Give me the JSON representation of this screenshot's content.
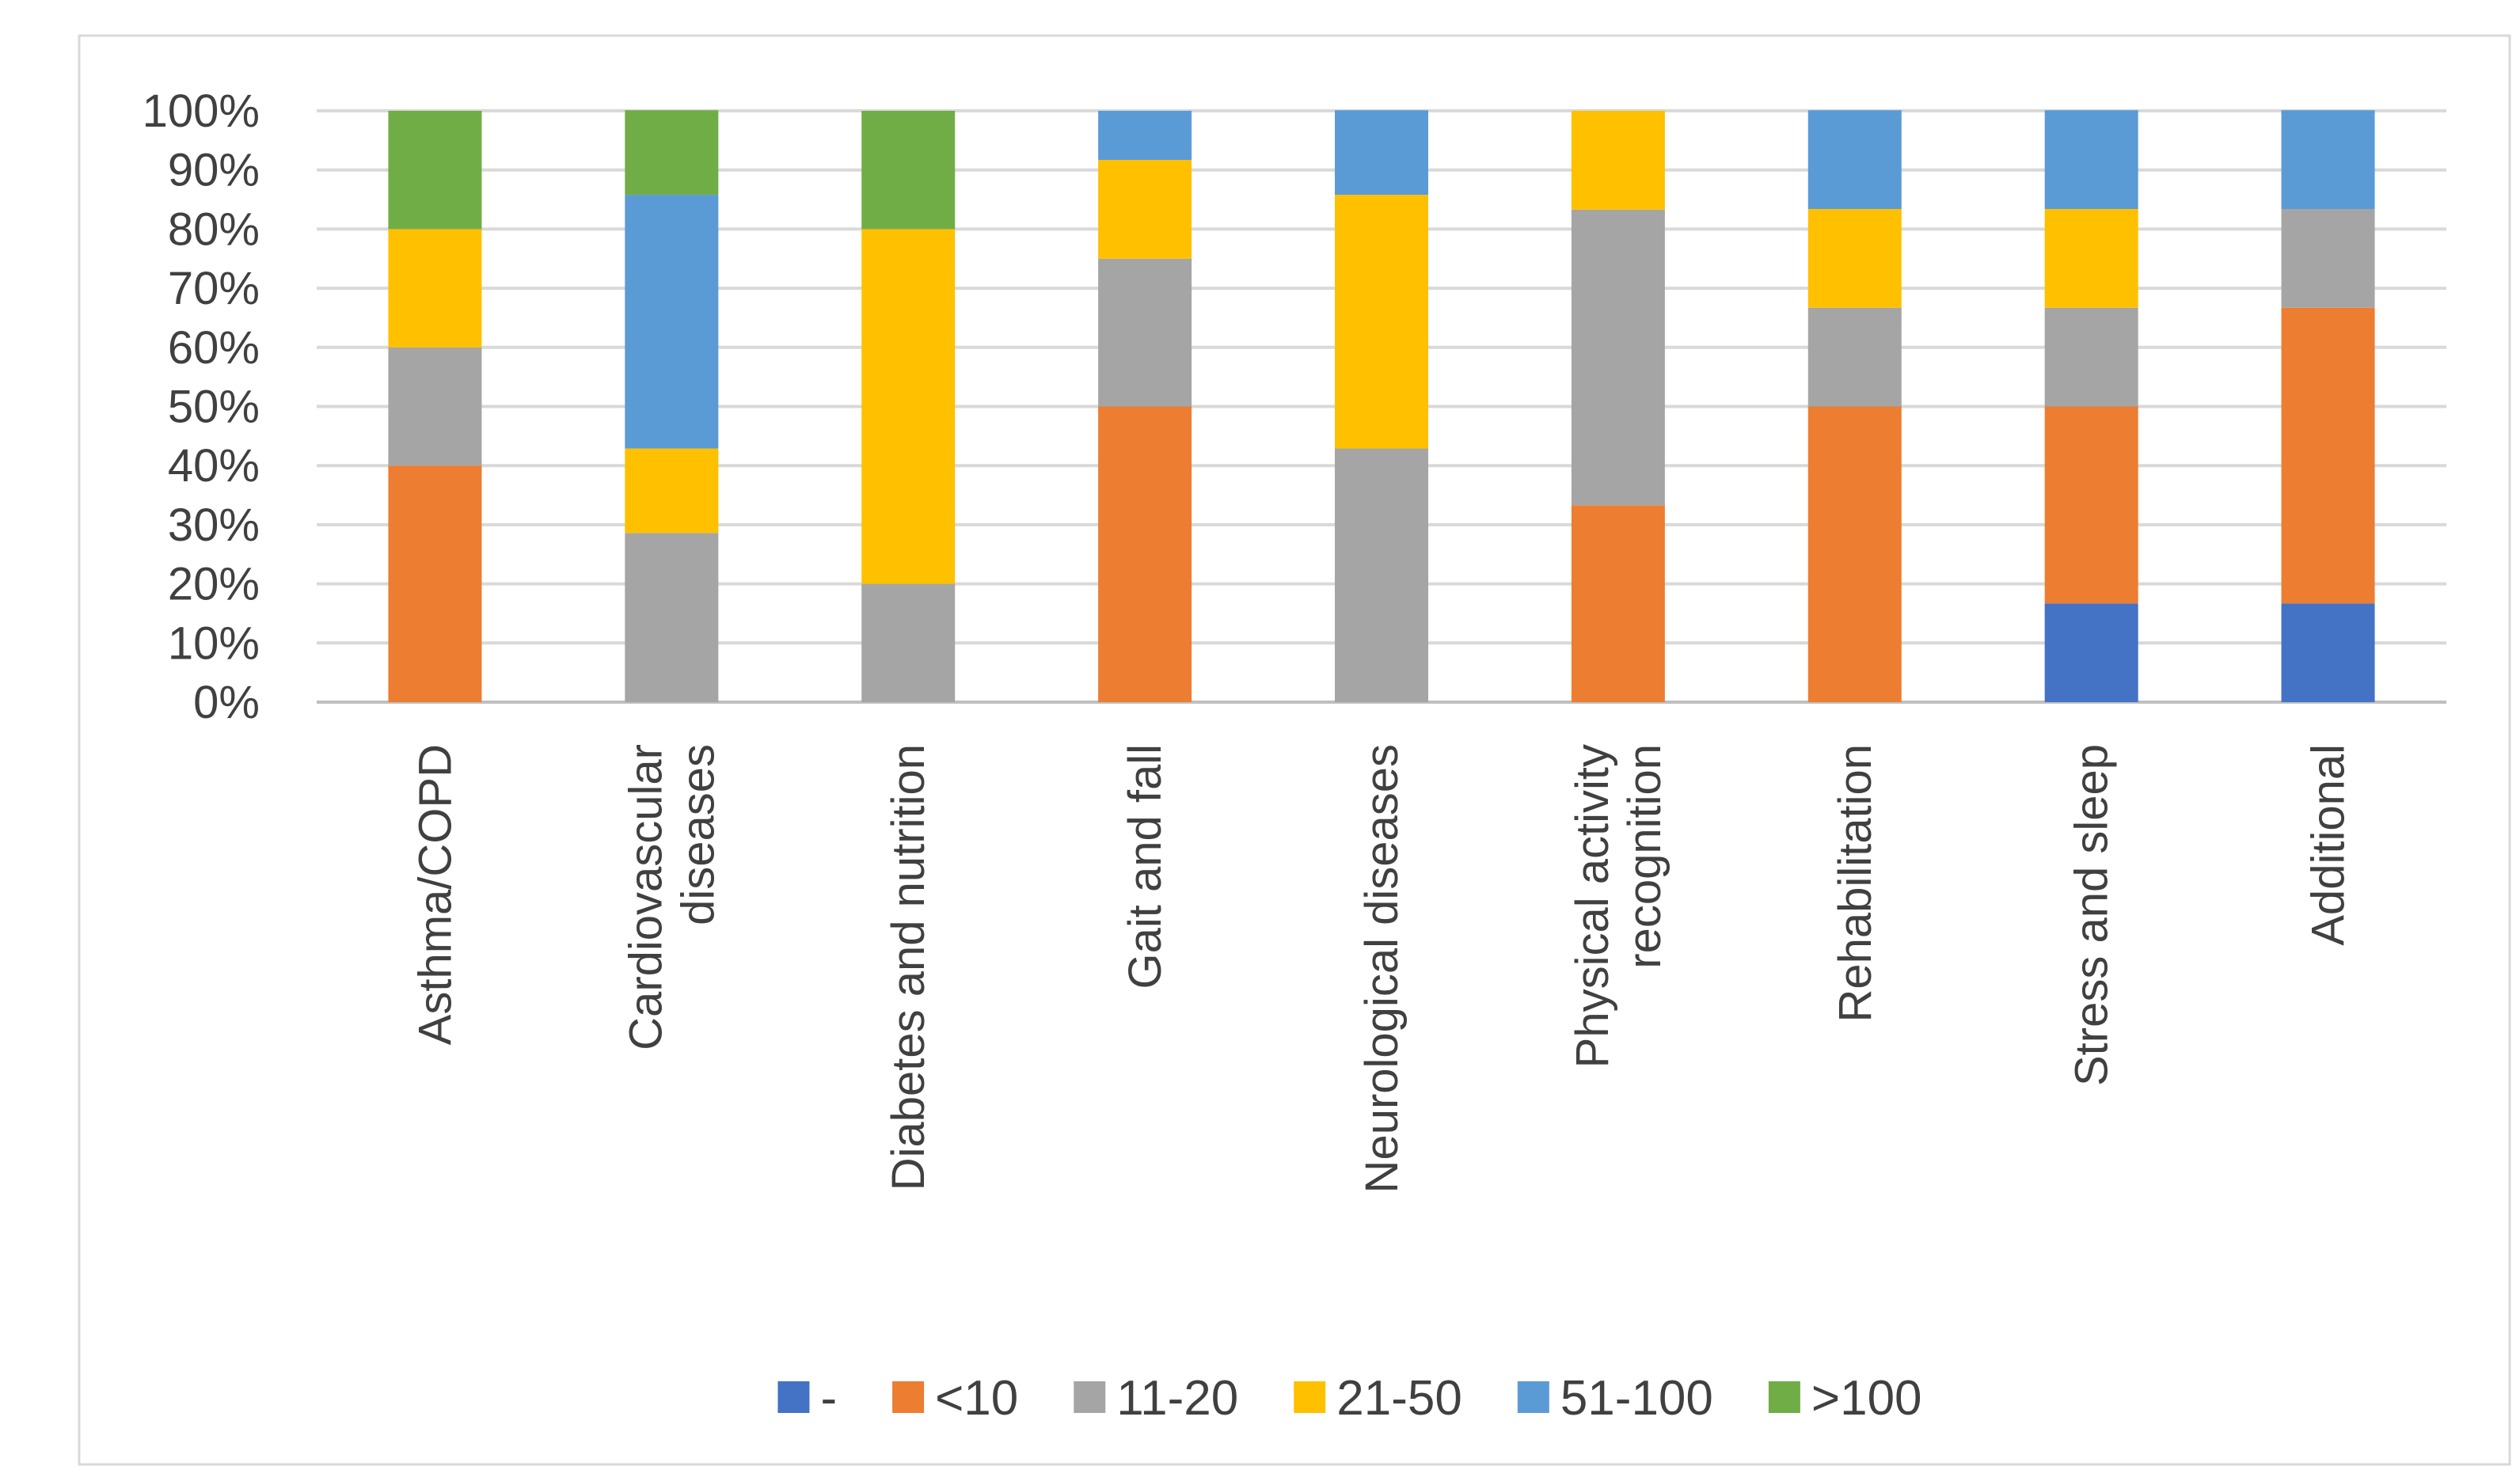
{
  "chart_data": {
    "type": "bar",
    "stacked": "percent",
    "title": "",
    "xlabel": "",
    "ylabel": "",
    "ylim": [
      0,
      100
    ],
    "y_ticks": [
      "0%",
      "10%",
      "20%",
      "30%",
      "40%",
      "50%",
      "60%",
      "70%",
      "80%",
      "90%",
      "100%"
    ],
    "categories": [
      [
        "Asthma/COPD"
      ],
      [
        "Cardiovascular",
        "diseases"
      ],
      [
        "Diabetes and nutrition"
      ],
      [
        "Gait and fall"
      ],
      [
        "Neurological diseases"
      ],
      [
        "Physical activity",
        "recognition"
      ],
      [
        "Rehabilitation"
      ],
      [
        "Stress and sleep"
      ],
      [
        "Additional"
      ]
    ],
    "series": [
      {
        "name": "-",
        "color": "#4472c4",
        "values": [
          0,
          0,
          0,
          0,
          0,
          0,
          0,
          16.7,
          16.7
        ]
      },
      {
        "name": "<10",
        "color": "#ed7d31",
        "values": [
          40,
          0,
          0,
          50,
          0,
          33.3,
          50,
          33.3,
          50
        ]
      },
      {
        "name": "11-20",
        "color": "#a5a5a5",
        "values": [
          20,
          28.6,
          20,
          25,
          42.9,
          50,
          16.7,
          16.7,
          16.7
        ]
      },
      {
        "name": "21-50",
        "color": "#ffc000",
        "values": [
          20,
          14.3,
          60,
          16.7,
          42.9,
          16.7,
          16.7,
          16.7,
          0
        ]
      },
      {
        "name": "51-100",
        "color": "#5b9bd5",
        "values": [
          0,
          42.9,
          0,
          8.3,
          14.3,
          0,
          16.7,
          16.7,
          16.7
        ]
      },
      {
        "name": ">100",
        "color": "#70ad47",
        "values": [
          20,
          14.3,
          20,
          0,
          0,
          0,
          0,
          0,
          0
        ]
      }
    ],
    "legend_position": "bottom",
    "grid": true
  }
}
